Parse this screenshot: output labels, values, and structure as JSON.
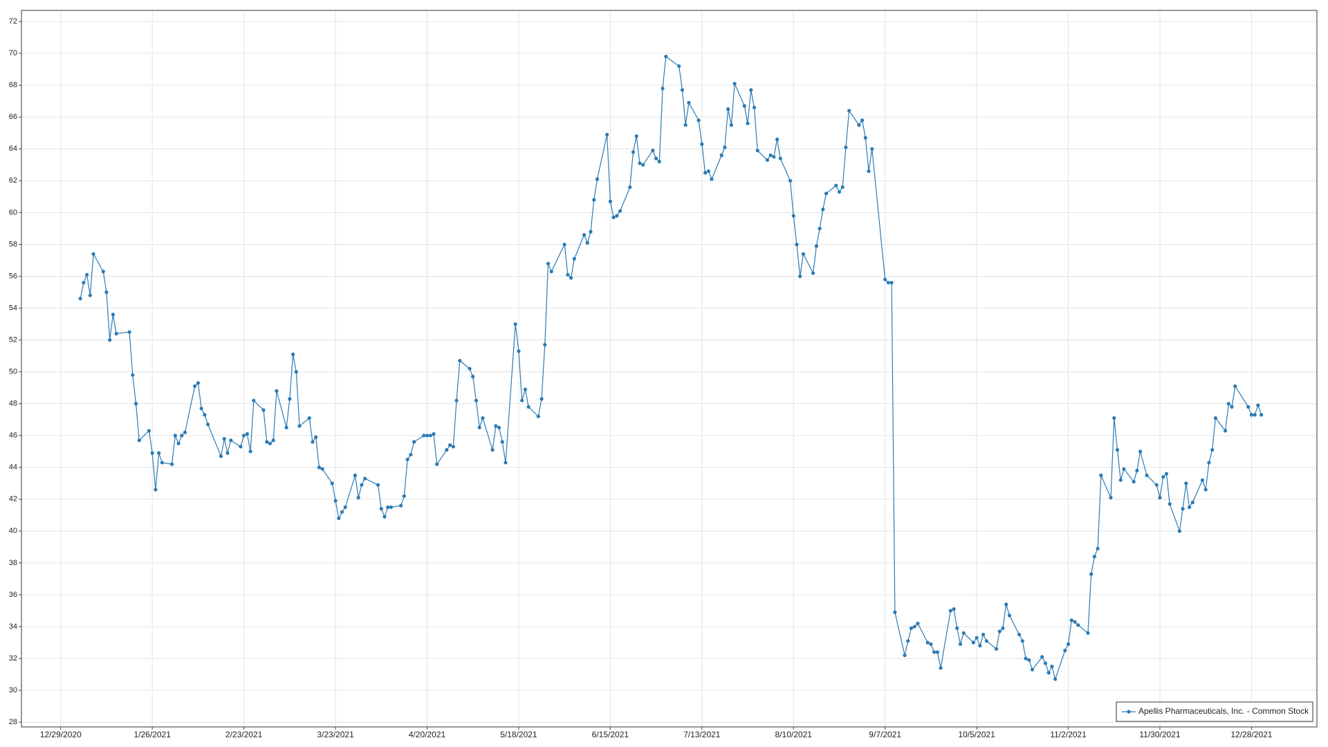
{
  "chart_data": {
    "type": "line",
    "x": [
      "1/4/2021",
      "1/5/2021",
      "1/6/2021",
      "1/7/2021",
      "1/8/2021",
      "1/11/2021",
      "1/12/2021",
      "1/13/2021",
      "1/14/2021",
      "1/15/2021",
      "1/19/2021",
      "1/20/2021",
      "1/21/2021",
      "1/22/2021",
      "1/25/2021",
      "1/26/2021",
      "1/27/2021",
      "1/28/2021",
      "1/29/2021",
      "2/1/2021",
      "2/2/2021",
      "2/3/2021",
      "2/4/2021",
      "2/5/2021",
      "2/8/2021",
      "2/9/2021",
      "2/10/2021",
      "2/11/2021",
      "2/12/2021",
      "2/16/2021",
      "2/17/2021",
      "2/18/2021",
      "2/19/2021",
      "2/22/2021",
      "2/23/2021",
      "2/24/2021",
      "2/25/2021",
      "2/26/2021",
      "3/1/2021",
      "3/2/2021",
      "3/3/2021",
      "3/4/2021",
      "3/5/2021",
      "3/8/2021",
      "3/9/2021",
      "3/10/2021",
      "3/11/2021",
      "3/12/2021",
      "3/15/2021",
      "3/16/2021",
      "3/17/2021",
      "3/18/2021",
      "3/19/2021",
      "3/22/2021",
      "3/23/2021",
      "3/24/2021",
      "3/25/2021",
      "3/26/2021",
      "3/29/2021",
      "3/30/2021",
      "3/31/2021",
      "4/1/2021",
      "4/5/2021",
      "4/6/2021",
      "4/7/2021",
      "4/8/2021",
      "4/9/2021",
      "4/12/2021",
      "4/13/2021",
      "4/14/2021",
      "4/15/2021",
      "4/16/2021",
      "4/19/2021",
      "4/20/2021",
      "4/21/2021",
      "4/22/2021",
      "4/23/2021",
      "4/26/2021",
      "4/27/2021",
      "4/28/2021",
      "4/29/2021",
      "4/30/2021",
      "5/3/2021",
      "5/4/2021",
      "5/5/2021",
      "5/6/2021",
      "5/7/2021",
      "5/10/2021",
      "5/11/2021",
      "5/12/2021",
      "5/13/2021",
      "5/14/2021",
      "5/17/2021",
      "5/18/2021",
      "5/19/2021",
      "5/20/2021",
      "5/21/2021",
      "5/24/2021",
      "5/25/2021",
      "5/26/2021",
      "5/27/2021",
      "5/28/2021",
      "6/1/2021",
      "6/2/2021",
      "6/3/2021",
      "6/4/2021",
      "6/7/2021",
      "6/8/2021",
      "6/9/2021",
      "6/10/2021",
      "6/11/2021",
      "6/14/2021",
      "6/15/2021",
      "6/16/2021",
      "6/17/2021",
      "6/18/2021",
      "6/21/2021",
      "6/22/2021",
      "6/23/2021",
      "6/24/2021",
      "6/25/2021",
      "6/28/2021",
      "6/29/2021",
      "6/30/2021",
      "7/1/2021",
      "7/2/2021",
      "7/6/2021",
      "7/7/2021",
      "7/8/2021",
      "7/9/2021",
      "7/12/2021",
      "7/13/2021",
      "7/14/2021",
      "7/15/2021",
      "7/16/2021",
      "7/19/2021",
      "7/20/2021",
      "7/21/2021",
      "7/22/2021",
      "7/23/2021",
      "7/26/2021",
      "7/27/2021",
      "7/28/2021",
      "7/29/2021",
      "7/30/2021",
      "8/2/2021",
      "8/3/2021",
      "8/4/2021",
      "8/5/2021",
      "8/6/2021",
      "8/9/2021",
      "8/10/2021",
      "8/11/2021",
      "8/12/2021",
      "8/13/2021",
      "8/16/2021",
      "8/17/2021",
      "8/18/2021",
      "8/19/2021",
      "8/20/2021",
      "8/23/2021",
      "8/24/2021",
      "8/25/2021",
      "8/26/2021",
      "8/27/2021",
      "8/30/2021",
      "8/31/2021",
      "9/1/2021",
      "9/2/2021",
      "9/3/2021",
      "9/7/2021",
      "9/8/2021",
      "9/9/2021",
      "9/10/2021",
      "9/13/2021",
      "9/14/2021",
      "9/15/2021",
      "9/16/2021",
      "9/17/2021",
      "9/20/2021",
      "9/21/2021",
      "9/22/2021",
      "9/23/2021",
      "9/24/2021",
      "9/27/2021",
      "9/28/2021",
      "9/29/2021",
      "9/30/2021",
      "10/1/2021",
      "10/4/2021",
      "10/5/2021",
      "10/6/2021",
      "10/7/2021",
      "10/8/2021",
      "10/11/2021",
      "10/12/2021",
      "10/13/2021",
      "10/14/2021",
      "10/15/2021",
      "10/18/2021",
      "10/19/2021",
      "10/20/2021",
      "10/21/2021",
      "10/22/2021",
      "10/25/2021",
      "10/26/2021",
      "10/27/2021",
      "10/28/2021",
      "10/29/2021",
      "11/1/2021",
      "11/2/2021",
      "11/3/2021",
      "11/4/2021",
      "11/5/2021",
      "11/8/2021",
      "11/9/2021",
      "11/10/2021",
      "11/11/2021",
      "11/12/2021",
      "11/15/2021",
      "11/16/2021",
      "11/17/2021",
      "11/18/2021",
      "11/19/2021",
      "11/22/2021",
      "11/23/2021",
      "11/24/2021",
      "11/26/2021",
      "11/29/2021",
      "11/30/2021",
      "12/1/2021",
      "12/2/2021",
      "12/3/2021",
      "12/6/2021",
      "12/7/2021",
      "12/8/2021",
      "12/9/2021",
      "12/10/2021",
      "12/13/2021",
      "12/14/2021",
      "12/15/2021",
      "12/16/2021",
      "12/17/2021",
      "12/20/2021",
      "12/21/2021",
      "12/22/2021",
      "12/23/2021",
      "12/27/2021",
      "12/28/2021",
      "12/29/2021",
      "12/30/2021",
      "12/31/2021"
    ],
    "series": [
      {
        "name": "Apellis Pharmaceuticals, Inc. - Common Stock",
        "color": "#2a7ab4",
        "values": [
          54.6,
          55.6,
          56.1,
          54.8,
          57.4,
          56.3,
          55.0,
          52.0,
          53.6,
          52.4,
          52.5,
          49.8,
          48.0,
          45.7,
          46.3,
          44.9,
          42.6,
          44.9,
          44.3,
          44.2,
          46.0,
          45.5,
          46.0,
          46.2,
          49.1,
          49.3,
          47.7,
          47.3,
          46.7,
          44.7,
          45.8,
          44.9,
          45.7,
          45.3,
          46.0,
          46.1,
          45.0,
          48.2,
          47.6,
          45.6,
          45.5,
          45.7,
          48.8,
          46.5,
          48.3,
          51.1,
          50.0,
          46.6,
          47.1,
          45.6,
          45.9,
          44.0,
          43.9,
          43.0,
          41.9,
          40.8,
          41.2,
          41.5,
          43.5,
          42.1,
          42.9,
          43.3,
          42.9,
          41.4,
          40.9,
          41.5,
          41.5,
          41.6,
          42.2,
          44.5,
          44.8,
          45.6,
          46.0,
          46.0,
          46.0,
          46.1,
          44.2,
          45.1,
          45.4,
          45.3,
          48.2,
          50.7,
          50.2,
          49.7,
          48.2,
          46.5,
          47.1,
          45.1,
          46.6,
          46.5,
          45.6,
          44.3,
          53.0,
          51.3,
          48.2,
          48.9,
          47.8,
          47.2,
          48.3,
          51.7,
          56.8,
          56.3,
          58.0,
          56.1,
          55.9,
          57.1,
          58.6,
          58.1,
          58.8,
          60.8,
          62.1,
          64.9,
          60.7,
          59.7,
          59.8,
          60.1,
          61.6,
          63.8,
          64.8,
          63.1,
          63.0,
          63.9,
          63.4,
          63.2,
          67.8,
          69.8,
          69.2,
          67.7,
          65.5,
          66.9,
          65.8,
          64.3,
          62.5,
          62.6,
          62.1,
          63.6,
          64.1,
          66.5,
          65.5,
          68.1,
          66.7,
          65.6,
          67.7,
          66.6,
          63.9,
          63.3,
          63.6,
          63.5,
          64.6,
          63.4,
          62.0,
          59.8,
          58.0,
          56.0,
          57.4,
          56.2,
          57.9,
          59.0,
          60.2,
          61.2,
          61.7,
          61.3,
          61.6,
          64.1,
          66.4,
          65.5,
          65.8,
          64.7,
          62.6,
          64.0,
          55.8,
          55.6,
          55.6,
          34.9,
          32.2,
          33.1,
          33.9,
          34.0,
          34.2,
          33.0,
          32.9,
          32.4,
          32.4,
          31.4,
          35.0,
          35.1,
          33.9,
          32.9,
          33.6,
          33.0,
          33.3,
          32.8,
          33.5,
          33.1,
          32.6,
          33.7,
          33.9,
          35.4,
          34.7,
          33.5,
          33.1,
          32.0,
          31.9,
          31.3,
          32.1,
          31.7,
          31.1,
          31.5,
          30.7,
          32.5,
          32.9,
          34.4,
          34.3,
          34.1,
          33.6,
          37.3,
          38.4,
          38.9,
          43.5,
          42.1,
          47.1,
          45.1,
          43.2,
          43.9,
          43.1,
          43.8,
          45.0,
          43.5,
          42.9,
          42.1,
          43.4,
          43.6,
          41.7,
          40.0,
          41.4,
          43.0,
          41.5,
          41.8,
          43.2,
          42.6,
          44.3,
          45.1,
          47.1,
          46.3,
          48.0,
          47.8,
          49.1,
          47.8,
          47.3,
          47.3,
          47.9,
          47.3
        ]
      }
    ],
    "xlim": [
      "12/17/2020",
      "1/17/2022"
    ],
    "xticks": [
      "12/29/2020",
      "1/26/2021",
      "2/23/2021",
      "3/23/2021",
      "4/20/2021",
      "5/18/2021",
      "6/15/2021",
      "7/13/2021",
      "8/10/2021",
      "9/7/2021",
      "10/5/2021",
      "11/2/2021",
      "11/30/2021",
      "12/28/2021"
    ],
    "ylim": [
      27.7,
      72.7
    ],
    "yticks": [
      28,
      30,
      32,
      34,
      36,
      38,
      40,
      42,
      44,
      46,
      48,
      50,
      52,
      54,
      56,
      58,
      60,
      62,
      64,
      66,
      68,
      70,
      72
    ],
    "grid": true,
    "legend": "lower right"
  }
}
